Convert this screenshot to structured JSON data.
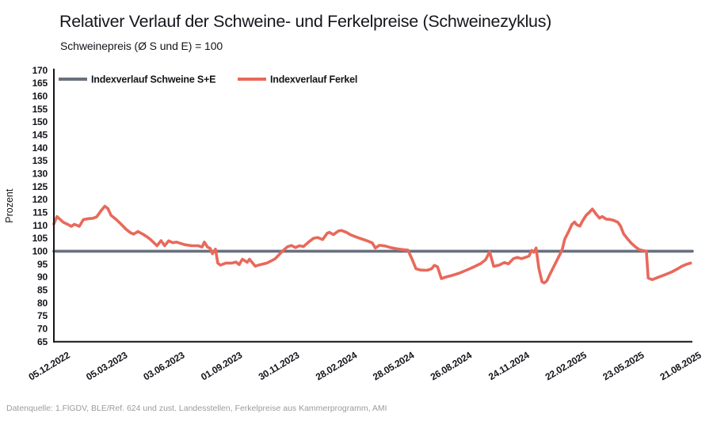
{
  "header": {
    "title": "Relativer Verlauf der Schweine- und Ferkelpreise (Schweinezyklus)",
    "subtitle": "Schweinepreis (Ø S und E) = 100"
  },
  "footer": {
    "source": "Datenquelle: 1.FlGDV, BLE/Ref. 624 und zust. Landesstellen, Ferkelpreise aus Kammerprogramm, AMI"
  },
  "colors": {
    "ink": "#15151c",
    "schweine_line": "#68717e",
    "ferkel_line": "#e8695b",
    "source_text": "#9b9ba1"
  },
  "chart_data": {
    "type": "line",
    "title": "Relativer Verlauf der Schweine- und Ferkelpreise (Schweinezyklus)",
    "subtitle": "Schweinepreis (Ø S und E) = 100",
    "ylabel": "Prozent",
    "ylim": [
      65,
      170
    ],
    "ytick_step": 5,
    "xlim": [
      0,
      143
    ],
    "x_unit": "Wochen ab 05.12.2022",
    "grid": false,
    "legend_position": "top-left-inside",
    "x_ticks": [
      {
        "week": 0,
        "label": "05.12.2022"
      },
      {
        "week": 12.9,
        "label": "05.03.2023"
      },
      {
        "week": 25.7,
        "label": "03.06.2023"
      },
      {
        "week": 38.6,
        "label": "01.09.2023"
      },
      {
        "week": 51.4,
        "label": "30.11.2023"
      },
      {
        "week": 64.3,
        "label": "28.02.2024"
      },
      {
        "week": 77.1,
        "label": "28.05.2024"
      },
      {
        "week": 90,
        "label": "26.08.2024"
      },
      {
        "week": 102.9,
        "label": "24.11.2024"
      },
      {
        "week": 115.7,
        "label": "22.02.2025"
      },
      {
        "week": 128.6,
        "label": "23.05.2025"
      },
      {
        "week": 141.4,
        "label": "21.08.2025"
      }
    ],
    "series": [
      {
        "name": "Indexverlauf Schweine S+E",
        "color": "#68717e",
        "points": [
          [
            0,
            100
          ],
          [
            143,
            100
          ]
        ]
      },
      {
        "name": "Indexverlauf Ferkel",
        "color": "#e8695b",
        "points": [
          [
            0,
            110.5
          ],
          [
            0.7,
            113.4
          ],
          [
            1.4,
            112.3
          ],
          [
            2.1,
            111.2
          ],
          [
            3.4,
            110.1
          ],
          [
            3.9,
            109.6
          ],
          [
            4.6,
            110.4
          ],
          [
            5.7,
            109.6
          ],
          [
            6.6,
            112.2
          ],
          [
            7.8,
            112.6
          ],
          [
            8.7,
            112.7
          ],
          [
            9.6,
            113.3
          ],
          [
            10.5,
            115.5
          ],
          [
            11.4,
            117.4
          ],
          [
            12.1,
            116.5
          ],
          [
            12.8,
            113.9
          ],
          [
            14,
            112.2
          ],
          [
            14.9,
            110.7
          ],
          [
            16.1,
            108.6
          ],
          [
            17.2,
            107.1
          ],
          [
            17.9,
            106.6
          ],
          [
            18.8,
            107.6
          ],
          [
            19.9,
            106.6
          ],
          [
            20.9,
            105.5
          ],
          [
            21.6,
            104.6
          ],
          [
            23.1,
            102.1
          ],
          [
            24,
            104.1
          ],
          [
            24.8,
            102.1
          ],
          [
            25.7,
            104
          ],
          [
            26.6,
            103.3
          ],
          [
            27.5,
            103.5
          ],
          [
            29.3,
            102.5
          ],
          [
            30.9,
            102.1
          ],
          [
            32.3,
            102.1
          ],
          [
            33.2,
            101.6
          ],
          [
            33.7,
            103.5
          ],
          [
            34.4,
            101.6
          ],
          [
            35,
            101.1
          ],
          [
            35.5,
            99
          ],
          [
            36.2,
            100.8
          ],
          [
            36.7,
            95.4
          ],
          [
            37.3,
            94.6
          ],
          [
            38.5,
            95.4
          ],
          [
            39.9,
            95.4
          ],
          [
            40.8,
            95.8
          ],
          [
            41.5,
            94.8
          ],
          [
            42.2,
            96.9
          ],
          [
            43.3,
            95.7
          ],
          [
            43.8,
            96.9
          ],
          [
            45.1,
            94.2
          ],
          [
            46,
            94.7
          ],
          [
            47.7,
            95.4
          ],
          [
            49.5,
            97
          ],
          [
            50.2,
            98.2
          ],
          [
            50.9,
            99.5
          ],
          [
            51.5,
            100.5
          ],
          [
            52.3,
            101.7
          ],
          [
            53.2,
            102.2
          ],
          [
            54.1,
            101.4
          ],
          [
            55,
            102.1
          ],
          [
            55.9,
            101.8
          ],
          [
            57.1,
            103.6
          ],
          [
            58.2,
            105
          ],
          [
            59.1,
            105.3
          ],
          [
            60.2,
            104.5
          ],
          [
            61.2,
            106.9
          ],
          [
            61.7,
            107.3
          ],
          [
            62.6,
            106.4
          ],
          [
            63.7,
            107.8
          ],
          [
            64.4,
            108
          ],
          [
            65.5,
            107.3
          ],
          [
            66.5,
            106.3
          ],
          [
            67.8,
            105.4
          ],
          [
            69,
            104.7
          ],
          [
            70.3,
            103.9
          ],
          [
            71.3,
            103.2
          ],
          [
            72,
            101.2
          ],
          [
            72.9,
            102.3
          ],
          [
            74.2,
            102
          ],
          [
            75.4,
            101.4
          ],
          [
            76.6,
            101
          ],
          [
            78.1,
            100.6
          ],
          [
            79.3,
            100.4
          ],
          [
            80.2,
            97
          ],
          [
            81.1,
            93.2
          ],
          [
            82.1,
            92.7
          ],
          [
            83.6,
            92.6
          ],
          [
            84.6,
            93.2
          ],
          [
            85.2,
            94.5
          ],
          [
            85.9,
            94
          ],
          [
            86.8,
            89.4
          ],
          [
            87.8,
            90
          ],
          [
            89.1,
            90.6
          ],
          [
            90.8,
            91.5
          ],
          [
            92.6,
            92.8
          ],
          [
            94.4,
            94.2
          ],
          [
            95.6,
            95.2
          ],
          [
            96.7,
            96.7
          ],
          [
            97.6,
            99.7
          ],
          [
            98.5,
            94.1
          ],
          [
            99.7,
            94.6
          ],
          [
            100.9,
            95.6
          ],
          [
            101.8,
            95.1
          ],
          [
            102.9,
            97.1
          ],
          [
            103.8,
            97.6
          ],
          [
            104.7,
            97.1
          ],
          [
            105.6,
            97.6
          ],
          [
            106.4,
            98.1
          ],
          [
            107,
            100.3
          ],
          [
            107.5,
            99.6
          ],
          [
            108,
            101.2
          ],
          [
            108.6,
            93.5
          ],
          [
            109.3,
            88.2
          ],
          [
            109.8,
            87.7
          ],
          [
            110.4,
            88.5
          ],
          [
            110.9,
            90.4
          ],
          [
            112.1,
            94.5
          ],
          [
            113.4,
            99
          ],
          [
            113.9,
            101
          ],
          [
            114.4,
            104.6
          ],
          [
            115.3,
            107.7
          ],
          [
            116,
            110.3
          ],
          [
            116.6,
            111.3
          ],
          [
            117.1,
            110.2
          ],
          [
            117.8,
            109.7
          ],
          [
            118.3,
            111.4
          ],
          [
            119.2,
            113.9
          ],
          [
            119.8,
            114.8
          ],
          [
            120.6,
            116.3
          ],
          [
            121.5,
            114.2
          ],
          [
            122.2,
            112.8
          ],
          [
            122.8,
            113.4
          ],
          [
            123.7,
            112.4
          ],
          [
            124.5,
            112.3
          ],
          [
            125.4,
            111.9
          ],
          [
            126.3,
            111.2
          ],
          [
            126.9,
            109.7
          ],
          [
            127.6,
            106.7
          ],
          [
            128.5,
            104.7
          ],
          [
            129.3,
            103.1
          ],
          [
            130.2,
            101.7
          ],
          [
            131.1,
            100.6
          ],
          [
            132,
            100.2
          ],
          [
            132.7,
            100
          ],
          [
            133.1,
            89.6
          ],
          [
            134,
            89
          ],
          [
            135.2,
            89.8
          ],
          [
            137,
            91
          ],
          [
            138.4,
            92
          ],
          [
            139.7,
            93.2
          ],
          [
            140.7,
            94.2
          ],
          [
            141.8,
            95
          ],
          [
            142.6,
            95.4
          ]
        ]
      }
    ]
  }
}
